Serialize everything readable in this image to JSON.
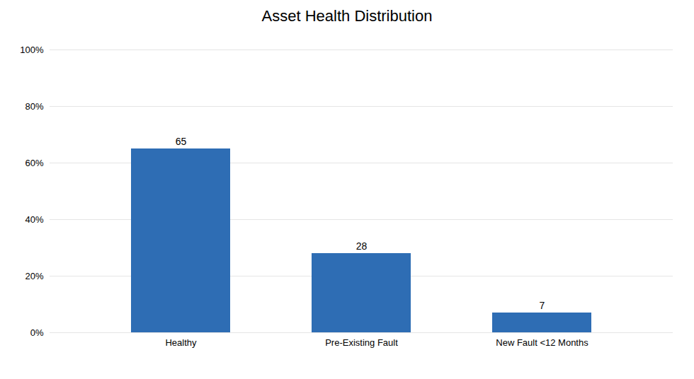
{
  "chart_data": {
    "type": "bar",
    "title": "Asset Health Distribution",
    "categories": [
      "Healthy",
      "Pre-Existing Fault",
      "New Fault <12 Months"
    ],
    "values": [
      65,
      28,
      7
    ],
    "color": "#2E6DB4",
    "ylim": [
      0,
      100
    ],
    "yticks": [
      {
        "value": 0,
        "label": "0%"
      },
      {
        "value": 20,
        "label": "20%"
      },
      {
        "value": 40,
        "label": "40%"
      },
      {
        "value": 60,
        "label": "60%"
      },
      {
        "value": 80,
        "label": "80%"
      },
      {
        "value": 100,
        "label": "100%"
      }
    ],
    "grid": true,
    "data_labels": true
  }
}
